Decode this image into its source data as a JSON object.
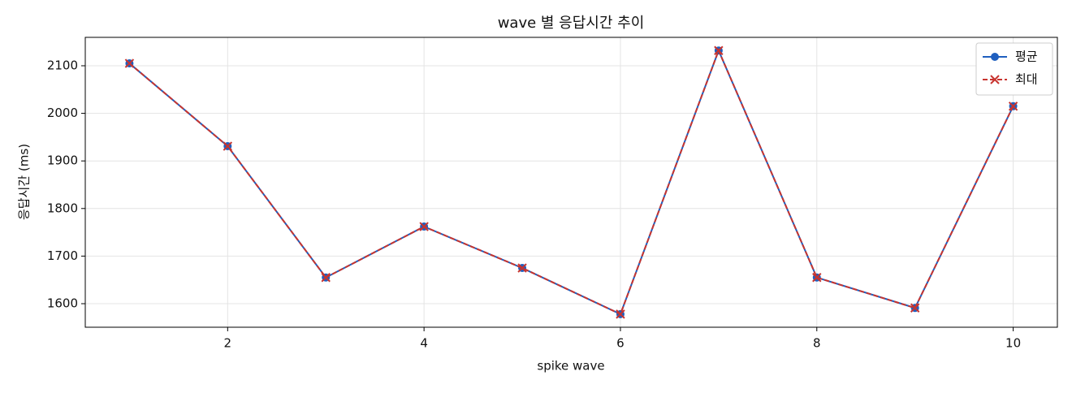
{
  "chart_data": {
    "type": "line",
    "title": "wave 별 응답시간 추이",
    "x_label": "spike wave",
    "y_label": "응답시간 (ms)",
    "x": [
      1,
      2,
      3,
      4,
      5,
      6,
      7,
      8,
      9,
      10
    ],
    "series": [
      {
        "name": "평균",
        "color": "#1f5fbf",
        "marker": "o",
        "linestyle": "solid",
        "values": [
          2105,
          1931,
          1655,
          1762,
          1675,
          1578,
          2132,
          1655,
          1591,
          2015
        ]
      },
      {
        "name": "최대",
        "color": "#c8342f",
        "marker": "x",
        "linestyle": "dashed",
        "values": [
          2105,
          1931,
          1655,
          1762,
          1675,
          1578,
          2132,
          1655,
          1591,
          2015
        ]
      }
    ],
    "xlim": [
      0.55,
      10.45
    ],
    "xticks": [
      2,
      4,
      6,
      8,
      10
    ],
    "ylim": [
      1550.5,
      2159.7
    ],
    "yticks": [
      1600,
      1700,
      1800,
      1900,
      2000,
      2100
    ],
    "grid": true,
    "legend": "upper right"
  }
}
